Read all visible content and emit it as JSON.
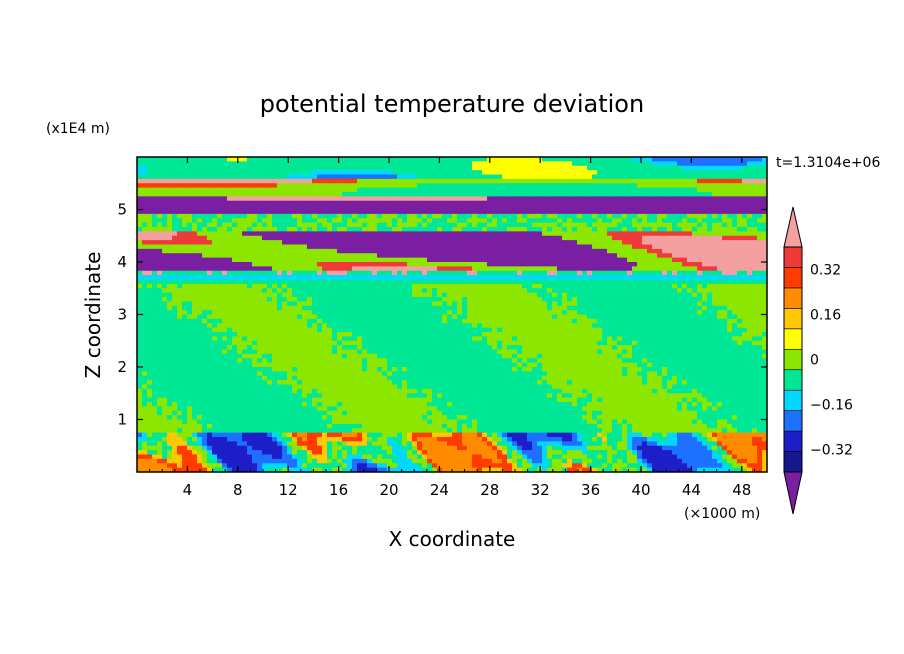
{
  "chart_data": {
    "type": "heatmap",
    "title": "potential temperature deviation",
    "xlabel": "X coordinate",
    "ylabel": "Z coordinate",
    "x_unit": "(×1000 m)",
    "y_unit": "(x1E4 m)",
    "time_label": "t=1.3104e+06",
    "xlim": [
      0,
      50
    ],
    "ylim": [
      0,
      6
    ],
    "x_ticks": [
      4,
      8,
      12,
      16,
      20,
      24,
      28,
      32,
      36,
      40,
      44,
      48
    ],
    "y_ticks": [
      1,
      2,
      3,
      4,
      5
    ],
    "colorbar": {
      "levels": [
        -0.48,
        -0.4,
        -0.32,
        -0.24,
        -0.16,
        -0.08,
        0,
        0.08,
        0.16,
        0.24,
        0.32,
        0.4,
        0.48
      ],
      "labels": [
        "0.32",
        "0.16",
        "0",
        "−0.16",
        "−0.32"
      ],
      "label_values": [
        0.32,
        0.16,
        0,
        -0.16,
        -0.32
      ],
      "colors": [
        "#7b1fa2",
        "#16168e",
        "#1e1ec8",
        "#1e70ff",
        "#00d8ff",
        "#00e896",
        "#8ce600",
        "#ffff00",
        "#ffc800",
        "#ff8c00",
        "#ff3c00",
        "#f03a3a",
        "#f5a0a0"
      ]
    },
    "bands": [
      {
        "z_range": [
          0,
          0.75
        ],
        "value": "mixed -0.4 to 0.48",
        "description": "turbulent boundary layer with plumes"
      },
      {
        "z_range": [
          0.75,
          3.6
        ],
        "value": "0 to 0.08"
      },
      {
        "z_range": [
          3.6,
          3.8
        ],
        "value": "-0.08"
      },
      {
        "z_range": [
          3.8,
          4.6
        ],
        "value": "alternating -0.48 / 0.48"
      },
      {
        "z_range": [
          4.6,
          5.0
        ],
        "value": "0 to 0.08"
      },
      {
        "z_range": [
          5.0,
          5.3
        ],
        "value": "-0.48"
      },
      {
        "z_range": [
          5.3,
          5.9
        ],
        "value": "0.48 / -0.4 mixed"
      }
    ]
  }
}
